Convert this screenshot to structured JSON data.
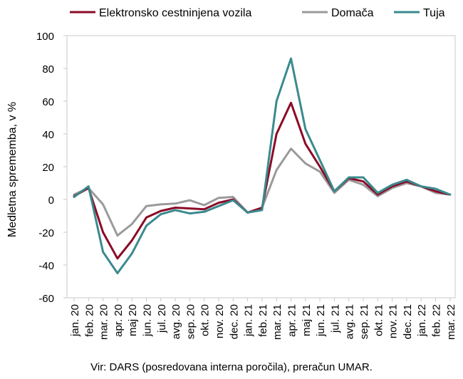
{
  "chart_data": {
    "type": "line",
    "title": "",
    "xlabel": "",
    "ylabel": "Medletna sprememba, v %",
    "ylim": [
      -60,
      100
    ],
    "yticks": [
      -60,
      -40,
      -20,
      0,
      20,
      40,
      60,
      80,
      100
    ],
    "grid": false,
    "legend_position": "top",
    "categories": [
      "jan. 20",
      "feb. 20",
      "mar. 20",
      "apr. 20",
      "maj 20",
      "jun. 20",
      "jul. 20",
      "avg. 20",
      "sep. 20",
      "okt. 20",
      "nov. 20",
      "dec. 20",
      "jan. 21",
      "feb. 21",
      "mar. 21",
      "apr. 21",
      "maj 21",
      "jun. 21",
      "jul. 21",
      "avg. 21",
      "sep. 21",
      "okt. 21",
      "nov. 21",
      "dec. 21",
      "jan. 22",
      "feb. 22",
      "mar. 22"
    ],
    "series": [
      {
        "name": "Elektronsko cestninjena vozila",
        "color": "#8b0a26",
        "values": [
          2,
          7,
          -20,
          -36,
          -25,
          -11,
          -7,
          -5,
          -5.5,
          -6,
          -2,
          0,
          -8,
          -5,
          40,
          59,
          34,
          20,
          5,
          13,
          11,
          3,
          8,
          11,
          8,
          5,
          3
        ]
      },
      {
        "name": "Domača",
        "color": "#9a9a9a",
        "values": [
          3,
          7,
          -3,
          -22,
          -15,
          -4,
          -3,
          -2.5,
          -0.5,
          -3.5,
          1,
          1.5,
          -8,
          -5,
          18,
          31,
          22,
          17,
          4,
          12,
          9,
          2,
          7,
          10,
          8,
          4,
          3
        ]
      },
      {
        "name": "Tuja",
        "color": "#3a8a8e",
        "values": [
          1.5,
          8,
          -32,
          -45,
          -33,
          -16,
          -9,
          -6.5,
          -8.5,
          -7.5,
          -4,
          -0.5,
          -8,
          -6.5,
          60,
          86,
          43,
          24,
          5,
          13.5,
          13.5,
          4,
          9,
          12,
          8,
          6.5,
          3
        ]
      }
    ]
  },
  "source_note": "Vir: DARS (posredovana interna poročila), preračun UMAR."
}
